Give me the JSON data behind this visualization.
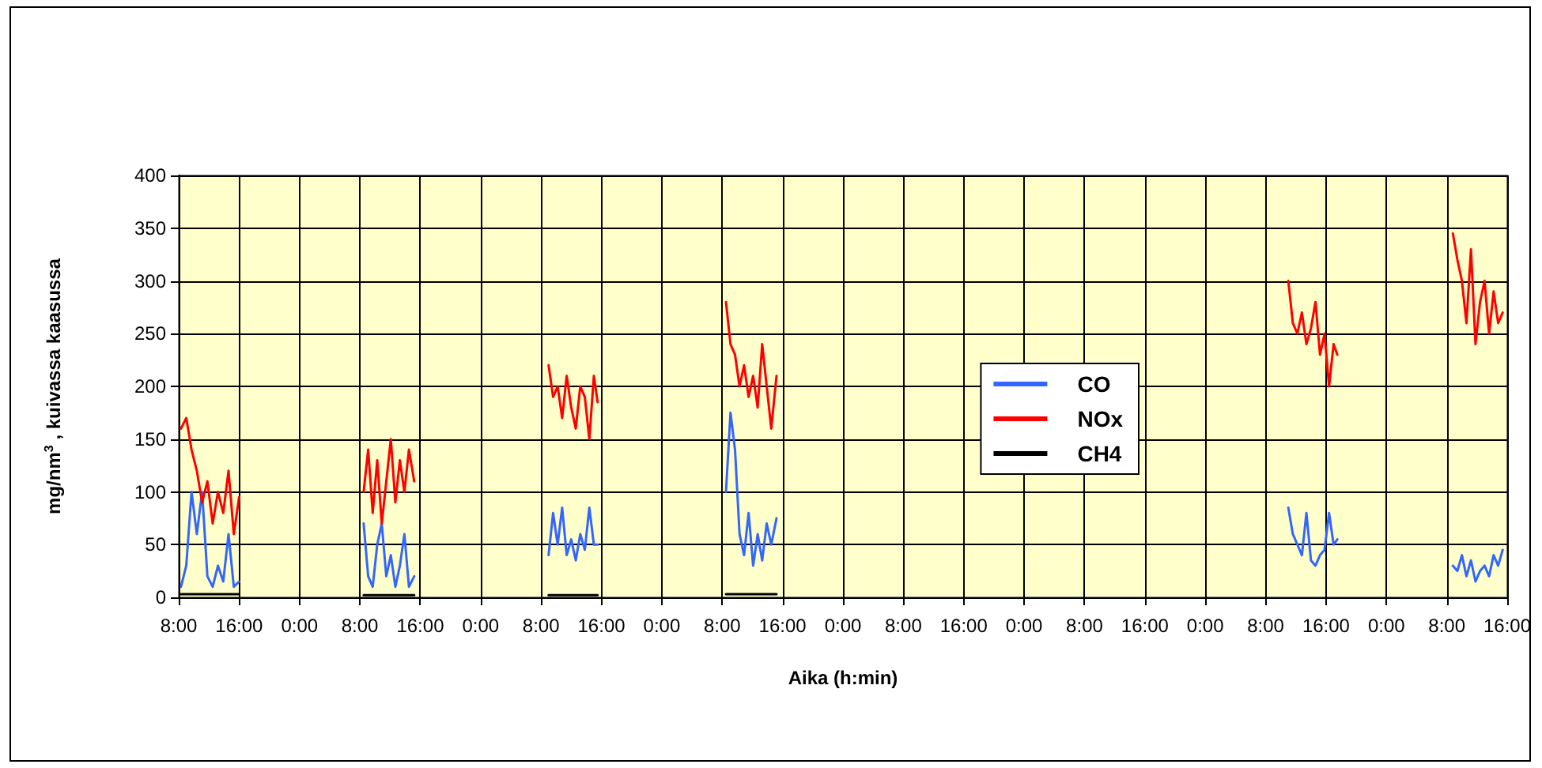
{
  "chart_data": {
    "type": "line",
    "xlabel": "Aika (h:min)",
    "ylabel": "mg/nm$^{3}$ , kuivassa kaasussa",
    "x": [
      "--01-01T08:18",
      "--01-01T09:00",
      "--01-01T09:42",
      "--01-01T10:24",
      "--01-01T11:06",
      "--01-01T11:48",
      "--01-01T12:30",
      "--01-01T13:12",
      "--01-01T13:54",
      "--01-01T14:36",
      "--01-01T15:18",
      "--01-01T16:00",
      "--01-01T20:00",
      "--01-02T08:30",
      "--01-02T09:06",
      "--01-02T09:42",
      "--01-02T10:18",
      "--01-02T10:54",
      "--01-02T11:30",
      "--01-02T12:06",
      "--01-02T12:42",
      "--01-02T13:18",
      "--01-02T13:54",
      "--01-02T14:30",
      "--01-02T15:12",
      "--01-02T21:00",
      "--01-03T09:00",
      "--01-03T09:36",
      "--01-03T10:12",
      "--01-03T10:48",
      "--01-03T11:24",
      "--01-03T12:00",
      "--01-03T12:36",
      "--01-03T13:12",
      "--01-03T13:48",
      "--01-03T14:24",
      "--01-03T15:00",
      "--01-03T15:30",
      "--01-03T22:00",
      "--01-04T08:30",
      "--01-04T09:06",
      "--01-04T09:42",
      "--01-04T10:18",
      "--01-04T10:54",
      "--01-04T11:30",
      "--01-04T12:06",
      "--01-04T12:42",
      "--01-04T13:18",
      "--01-04T13:54",
      "--01-04T14:30",
      "--01-04T15:12",
      "--01-06T00:00",
      "--01-07T11:00",
      "--01-07T11:36",
      "--01-07T12:12",
      "--01-07T12:48",
      "--01-07T13:24",
      "--01-07T14:00",
      "--01-07T14:36",
      "--01-07T15:12",
      "--01-07T15:48",
      "--01-07T16:24",
      "--01-07T17:00",
      "--01-07T17:30",
      "--01-08T02:00",
      "--01-08T08:48",
      "--01-08T09:24",
      "--01-08T10:00",
      "--01-08T10:36",
      "--01-08T11:12",
      "--01-08T11:48",
      "--01-08T12:24",
      "--01-08T13:00",
      "--01-08T13:36",
      "--01-08T14:12",
      "--01-08T14:48",
      "--01-08T15:24"
    ],
    "series": [
      {
        "name": "CO",
        "color": "#3366ff",
        "values": [
          10,
          30,
          100,
          60,
          100,
          20,
          10,
          30,
          15,
          60,
          10,
          15,
          null,
          70,
          20,
          10,
          50,
          70,
          20,
          40,
          10,
          30,
          60,
          10,
          20,
          null,
          40,
          80,
          50,
          85,
          40,
          55,
          35,
          60,
          45,
          85,
          50,
          50,
          null,
          100,
          175,
          140,
          60,
          40,
          80,
          30,
          60,
          35,
          70,
          50,
          75,
          null,
          85,
          60,
          50,
          40,
          80,
          35,
          30,
          40,
          45,
          80,
          50,
          55,
          null,
          30,
          25,
          40,
          20,
          35,
          15,
          25,
          30,
          20,
          40,
          30,
          45
        ]
      },
      {
        "name": "NOx",
        "color": "#ff0000",
        "values": [
          160,
          170,
          140,
          120,
          90,
          110,
          70,
          100,
          80,
          120,
          60,
          95,
          null,
          100,
          140,
          80,
          130,
          70,
          110,
          150,
          90,
          130,
          100,
          140,
          110,
          null,
          220,
          190,
          200,
          170,
          210,
          180,
          160,
          200,
          190,
          150,
          210,
          185,
          null,
          280,
          240,
          230,
          200,
          220,
          190,
          210,
          180,
          240,
          200,
          160,
          210,
          null,
          300,
          260,
          250,
          270,
          240,
          255,
          280,
          230,
          250,
          200,
          240,
          230,
          null,
          345,
          320,
          300,
          260,
          330,
          240,
          280,
          300,
          250,
          290,
          260,
          270
        ]
      },
      {
        "name": "CH4",
        "color": "#000000",
        "values": [
          3,
          3,
          3,
          3,
          3,
          3,
          3,
          3,
          3,
          3,
          3,
          3,
          null,
          2,
          2,
          2,
          2,
          2,
          2,
          2,
          2,
          2,
          2,
          2,
          2,
          null,
          2,
          2,
          2,
          2,
          2,
          2,
          2,
          2,
          2,
          2,
          2,
          2,
          null,
          3,
          3,
          3,
          3,
          3,
          3,
          3,
          3,
          3,
          3,
          3,
          3,
          null,
          null,
          null,
          null,
          null,
          null,
          null,
          null,
          null,
          null,
          null,
          null,
          null,
          null,
          null,
          null,
          null,
          null,
          null,
          null,
          null,
          null,
          null,
          null,
          null,
          null
        ]
      }
    ],
    "xlim": [
      "--01-01T08:00",
      "--01-08T16:00"
    ],
    "xticks": [
      {
        "value": "--01-01T08:00",
        "label": "8:00"
      },
      {
        "value": "--01-01T16:00",
        "label": "16:00"
      },
      {
        "value": "--01-02T00:00",
        "label": "0:00"
      },
      {
        "value": "--01-02T08:00",
        "label": "8:00"
      },
      {
        "value": "--01-02T16:00",
        "label": "16:00"
      },
      {
        "value": "--01-03T00:00",
        "label": "0:00"
      },
      {
        "value": "--01-03T08:00",
        "label": "8:00"
      },
      {
        "value": "--01-03T16:00",
        "label": "16:00"
      },
      {
        "value": "--01-04T00:00",
        "label": "0:00"
      },
      {
        "value": "--01-04T08:00",
        "label": "8:00"
      },
      {
        "value": "--01-04T16:00",
        "label": "16:00"
      },
      {
        "value": "--01-05T00:00",
        "label": "0:00"
      },
      {
        "value": "--01-05T08:00",
        "label": "8:00"
      },
      {
        "value": "--01-05T16:00",
        "label": "16:00"
      },
      {
        "value": "--01-06T00:00",
        "label": "0:00"
      },
      {
        "value": "--01-06T08:00",
        "label": "8:00"
      },
      {
        "value": "--01-06T16:00",
        "label": "16:00"
      },
      {
        "value": "--01-07T00:00",
        "label": "0:00"
      },
      {
        "value": "--01-07T08:00",
        "label": "8:00"
      },
      {
        "value": "--01-07T16:00",
        "label": "16:00"
      },
      {
        "value": "--01-08T00:00",
        "label": "0:00"
      },
      {
        "value": "--01-08T08:00",
        "label": "8:00"
      },
      {
        "value": "--01-08T16:00",
        "label": "16:00"
      }
    ],
    "ylim": [
      0,
      400
    ],
    "yticks": [
      0,
      50,
      100,
      150,
      200,
      250,
      300,
      350,
      400
    ],
    "grid": true,
    "legend": "right",
    "marker": "none",
    "line_style": "solid"
  }
}
